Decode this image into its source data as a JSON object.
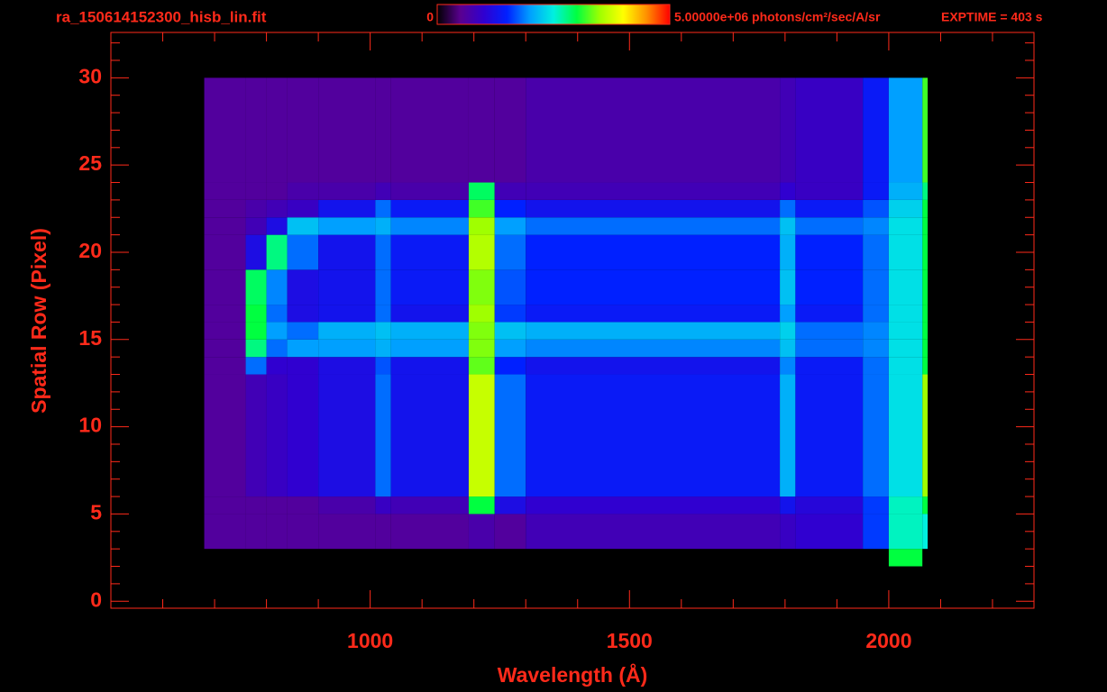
{
  "chart_data": {
    "type": "heatmap",
    "title": "ra_150614152300_hisb_lin.fit",
    "exposure": "EXPTIME = 403 s",
    "x_label": "Wavelength (Å)",
    "y_label": "Spatial Row (Pixel)",
    "xlim": [
      500,
      2280
    ],
    "ylim": [
      -0.4,
      32.6
    ],
    "xticks": [
      1000,
      1500,
      2000
    ],
    "yticks": [
      0,
      5,
      10,
      15,
      20,
      25,
      30
    ],
    "xminorticks": [
      600,
      700,
      800,
      900,
      1100,
      1200,
      1300,
      1400,
      1600,
      1700,
      1800,
      1900,
      2100,
      2200
    ],
    "yminorticks": [
      1,
      2,
      3,
      4,
      6,
      7,
      8,
      9,
      11,
      12,
      13,
      14,
      16,
      17,
      18,
      19,
      21,
      22,
      23,
      24,
      26,
      27,
      28,
      29,
      31,
      32
    ],
    "zlim": [
      0,
      5000000
    ],
    "zticks": [
      0,
      {
        "value": 5000000,
        "label": "5.00000e+06 photons/cm²/sec/A/sr"
      }
    ],
    "axis_color": "#ff2a1a",
    "colormap": [
      "#000000",
      "#5a0090",
      "#3000d0",
      "#0020ff",
      "#00a0ff",
      "#00f0e0",
      "#00ff40",
      "#a0ff00",
      "#ffff00",
      "#ff9000",
      "#ff0000"
    ],
    "x_bins": [
      680,
      760,
      800,
      840,
      900,
      1010,
      1040,
      1190,
      1240,
      1300,
      1790,
      1820,
      1950,
      2000,
      2065,
      2075
    ],
    "y_bins": [
      2,
      3,
      5,
      6,
      13,
      14,
      15,
      16,
      17,
      19,
      21,
      22,
      23,
      24,
      30
    ],
    "values": [
      [
        0,
        0,
        0,
        0,
        0,
        0,
        0,
        0,
        0,
        0,
        0,
        0,
        0,
        3000000.0,
        0
      ],
      [
        600000.0,
        600000.0,
        600000.0,
        600000.0,
        600000.0,
        600000.0,
        600000.0,
        700000.0,
        600000.0,
        800000.0,
        900000.0,
        1000000.0,
        1600000.0,
        2600000.0,
        2500000.0
      ],
      [
        600000.0,
        600000.0,
        600000.0,
        600000.0,
        700000.0,
        900000.0,
        800000.0,
        3000000.0,
        1200000.0,
        1000000.0,
        1300000.0,
        1100000.0,
        1600000.0,
        2600000.0,
        3000000.0
      ],
      [
        600000.0,
        800000.0,
        900000.0,
        1000000.0,
        1200000.0,
        1800000.0,
        1300000.0,
        3700000.0,
        1800000.0,
        1400000.0,
        2100000.0,
        1400000.0,
        1800000.0,
        2400000.0,
        3500000.0
      ],
      [
        600000.0,
        1800000.0,
        1000000.0,
        1000000.0,
        1200000.0,
        1700000.0,
        1300000.0,
        3300000.0,
        1500000.0,
        1300000.0,
        1900000.0,
        1400000.0,
        1800000.0,
        2400000.0,
        3000000.0
      ],
      [
        600000.0,
        2800000.0,
        1800000.0,
        2000000.0,
        2000000.0,
        2100000.0,
        2000000.0,
        3400000.0,
        2000000.0,
        1900000.0,
        2200000.0,
        1800000.0,
        1900000.0,
        2400000.0,
        3000000.0
      ],
      [
        600000.0,
        3000000.0,
        2000000.0,
        1800000.0,
        2100000.0,
        2200000.0,
        2100000.0,
        3400000.0,
        2200000.0,
        2100000.0,
        2300000.0,
        1800000.0,
        1900000.0,
        2400000.0,
        3000000.0
      ],
      [
        600000.0,
        3000000.0,
        1800000.0,
        1200000.0,
        1300000.0,
        1800000.0,
        1300000.0,
        3500000.0,
        1600000.0,
        1400000.0,
        2000000.0,
        1400000.0,
        1800000.0,
        2400000.0,
        3000000.0
      ],
      [
        600000.0,
        2900000.0,
        1900000.0,
        1200000.0,
        1300000.0,
        1800000.0,
        1400000.0,
        3400000.0,
        1700000.0,
        1500000.0,
        2200000.0,
        1500000.0,
        1800000.0,
        2400000.0,
        3000000.0
      ],
      [
        600000.0,
        1200000.0,
        2800000.0,
        1800000.0,
        1300000.0,
        1800000.0,
        1400000.0,
        3600000.0,
        1800000.0,
        1500000.0,
        2100000.0,
        1500000.0,
        1800000.0,
        2400000.0,
        3000000.0
      ],
      [
        600000.0,
        800000.0,
        1200000.0,
        2200000.0,
        2000000.0,
        2100000.0,
        1900000.0,
        3500000.0,
        2000000.0,
        1800000.0,
        2200000.0,
        1800000.0,
        1900000.0,
        2400000.0,
        3000000.0
      ],
      [
        600000.0,
        700000.0,
        800000.0,
        900000.0,
        1300000.0,
        1800000.0,
        1400000.0,
        3200000.0,
        1500000.0,
        1300000.0,
        1800000.0,
        1400000.0,
        1700000.0,
        2300000.0,
        3000000.0
      ],
      [
        600000.0,
        600000.0,
        600000.0,
        700000.0,
        700000.0,
        800000.0,
        700000.0,
        2900000.0,
        800000.0,
        800000.0,
        1000000.0,
        900000.0,
        1400000.0,
        2100000.0,
        2800000.0
      ],
      [
        600000.0,
        600000.0,
        600000.0,
        600000.0,
        600000.0,
        600000.0,
        600000.0,
        600000.0,
        600000.0,
        700000.0,
        800000.0,
        900000.0,
        1400000.0,
        2000000.0,
        3200000.0
      ]
    ]
  }
}
